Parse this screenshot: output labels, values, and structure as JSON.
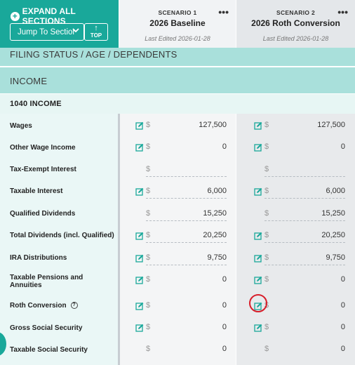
{
  "toolbar": {
    "expand_label": "EXPAND ALL SECTIONS",
    "jump_label": "Jump To Sectior",
    "top_label": "TOP"
  },
  "scenarios": [
    {
      "label": "SCENARIO 1",
      "name": "2026 Baseline",
      "edited": "Last Edited 2026-01-28"
    },
    {
      "label": "SCENARIO 2",
      "name": "2026 Roth Conversion",
      "edited": "Last Edited 2026-01-28"
    }
  ],
  "sections": {
    "filing": "FILING STATUS / AGE / DEPENDENTS",
    "income": "INCOME",
    "sub_1040": "1040 INCOME"
  },
  "rows": [
    {
      "label": "Wages",
      "s1": "127,500",
      "s2": "127,500"
    },
    {
      "label": "Other Wage Income",
      "s1": "0",
      "s2": "0"
    },
    {
      "label": "Tax-Exempt Interest",
      "s1": "",
      "s2": ""
    },
    {
      "label": "Taxable Interest",
      "s1": "6,000",
      "s2": "6,000"
    },
    {
      "label": "Qualified Dividends",
      "s1": "15,250",
      "s2": "15,250"
    },
    {
      "label": "Total Dividends (incl. Qualified)",
      "s1": "20,250",
      "s2": "20,250"
    },
    {
      "label": "IRA Distributions",
      "s1": "9,750",
      "s2": "9,750"
    },
    {
      "label": "Taxable Pensions and Annuities",
      "s1": "0",
      "s2": "0"
    },
    {
      "label": "Roth Conversion",
      "s1": "0",
      "s2": "0"
    },
    {
      "label": "Gross Social Security",
      "s1": "0",
      "s2": "0"
    },
    {
      "label": "Taxable Social Security",
      "s1": "0",
      "s2": "0"
    }
  ],
  "symbols": {
    "currency": "$",
    "more": "•••",
    "help": "?"
  },
  "colors": {
    "accent": "#19a89a",
    "section": "#a9e0db",
    "highlight": "#d81e2a"
  }
}
